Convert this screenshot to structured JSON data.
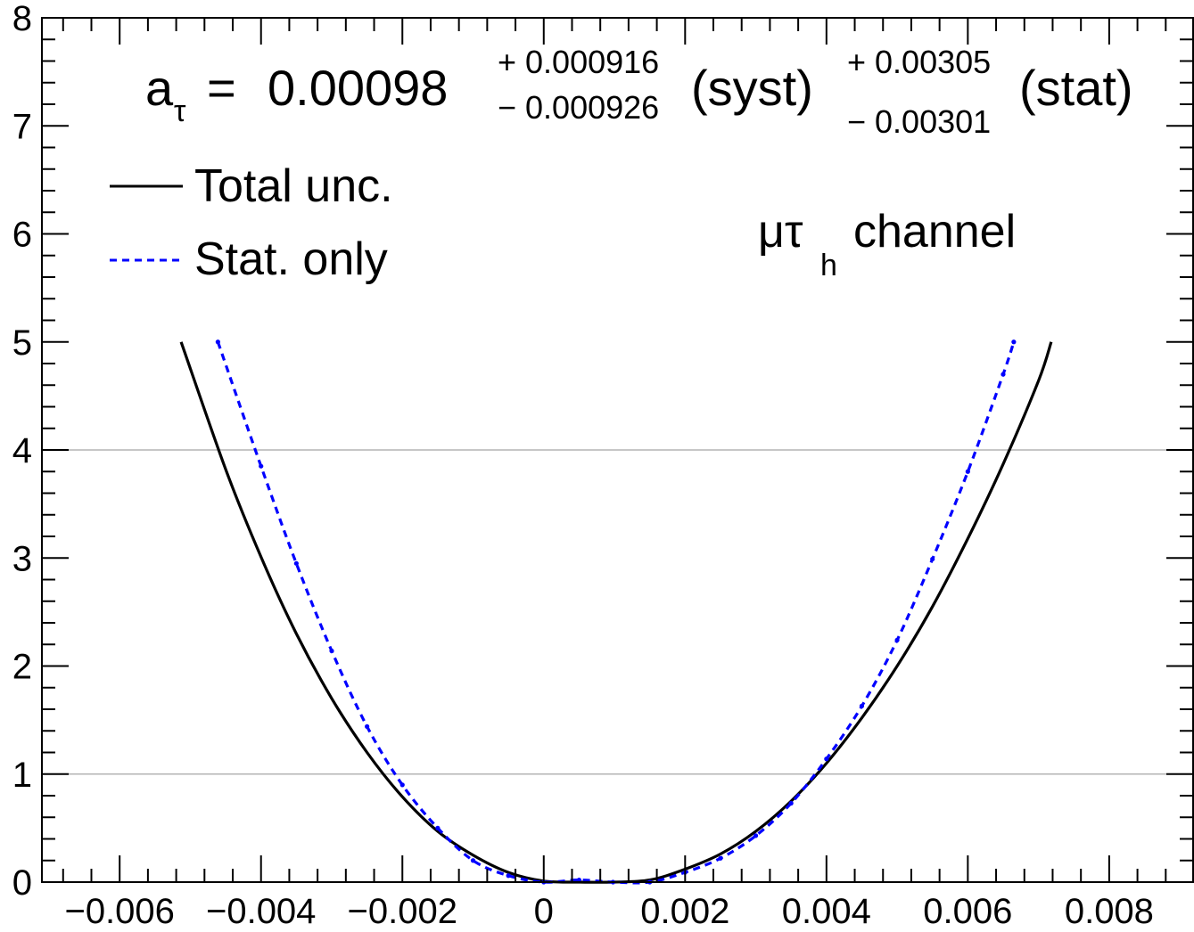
{
  "chart_data": {
    "type": "line",
    "title": "",
    "xlabel": "",
    "ylabel": "",
    "xlim": [
      -0.0071,
      0.0092
    ],
    "ylim": [
      0,
      8
    ],
    "xticks": [
      {
        "value": -0.006,
        "label": "−0.006"
      },
      {
        "value": -0.004,
        "label": "−0.004"
      },
      {
        "value": -0.002,
        "label": "−0.002"
      },
      {
        "value": 0,
        "label": "0"
      },
      {
        "value": 0.002,
        "label": "0.002"
      },
      {
        "value": 0.004,
        "label": "0.004"
      },
      {
        "value": 0.006,
        "label": "0.006"
      },
      {
        "value": 0.008,
        "label": "0.008"
      }
    ],
    "yticks": [
      {
        "value": 0,
        "label": "0"
      },
      {
        "value": 1,
        "label": "1"
      },
      {
        "value": 2,
        "label": "2"
      },
      {
        "value": 3,
        "label": "3"
      },
      {
        "value": 4,
        "label": "4"
      },
      {
        "value": 5,
        "label": "5"
      },
      {
        "value": 6,
        "label": "6"
      },
      {
        "value": 7,
        "label": "7"
      },
      {
        "value": 8,
        "label": "8"
      }
    ],
    "reference_lines": [
      1,
      4
    ],
    "grid": false,
    "legend_position": "top-left",
    "series": [
      {
        "name": "Total unc.",
        "color": "#000000",
        "style": "solid",
        "x": [
          -0.00513,
          -0.0045,
          -0.004,
          -0.0035,
          -0.003,
          -0.0025,
          -0.002,
          -0.0015,
          -0.001,
          -0.0005,
          0.0,
          0.0005,
          0.00098,
          0.0015,
          0.002,
          0.0025,
          0.003,
          0.0035,
          0.004,
          0.0045,
          0.005,
          0.0055,
          0.006,
          0.0065,
          0.007,
          0.00718
        ],
        "y": [
          5.0,
          3.82,
          3.01,
          2.3,
          1.7,
          1.2,
          0.79,
          0.47,
          0.25,
          0.09,
          0.01,
          0.0,
          0.0,
          0.02,
          0.12,
          0.26,
          0.47,
          0.75,
          1.1,
          1.52,
          2.0,
          2.55,
          3.18,
          3.87,
          4.64,
          5.0
        ]
      },
      {
        "name": "Stat. only",
        "color": "#0000ff",
        "style": "dashed",
        "x": [
          -0.00461,
          -0.004,
          -0.0035,
          -0.003,
          -0.0025,
          -0.002,
          -0.0015,
          -0.001,
          -0.0005,
          0.0,
          0.0005,
          0.00098,
          0.0015,
          0.002,
          0.0025,
          0.003,
          0.0035,
          0.004,
          0.0045,
          0.005,
          0.0055,
          0.006,
          0.0065,
          0.00665
        ],
        "y": [
          5.0,
          3.85,
          2.95,
          2.14,
          1.44,
          0.9,
          0.5,
          0.2,
          0.06,
          0.0,
          0.02,
          0.0,
          0.0,
          0.09,
          0.22,
          0.43,
          0.73,
          1.14,
          1.63,
          2.24,
          2.99,
          3.8,
          4.7,
          5.0
        ]
      }
    ],
    "annotations": {
      "result_value": "0.00098",
      "syst_up": "+ 0.000916",
      "syst_down": "− 0.000926",
      "syst_label": "(syst)",
      "stat_up": "+ 0.00305",
      "stat_down": "− 0.00301",
      "stat_label": "(stat)",
      "channel": "channel"
    }
  }
}
